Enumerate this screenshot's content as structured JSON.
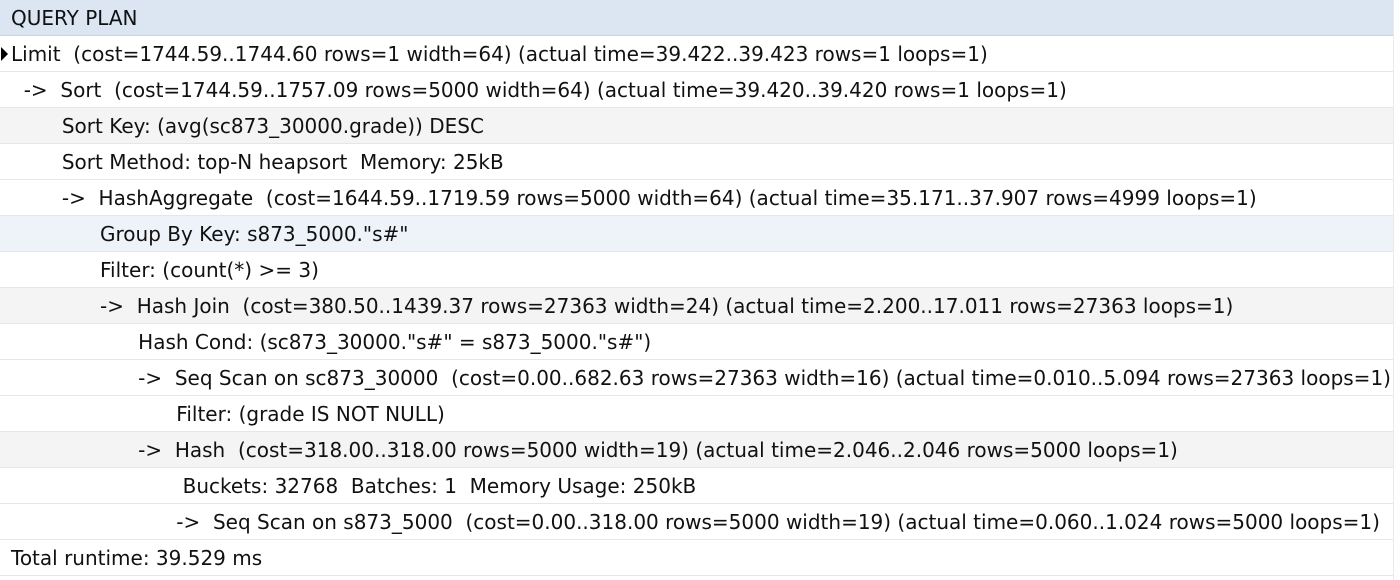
{
  "result_grid": {
    "column_header": "QUERY PLAN",
    "rows": [
      "Limit  (cost=1744.59..1744.60 rows=1 width=64) (actual time=39.422..39.423 rows=1 loops=1)",
      "  ->  Sort  (cost=1744.59..1757.09 rows=5000 width=64) (actual time=39.420..39.420 rows=1 loops=1)",
      "        Sort Key: (avg(sc873_30000.grade)) DESC",
      "        Sort Method: top-N heapsort  Memory: 25kB",
      "        ->  HashAggregate  (cost=1644.59..1719.59 rows=5000 width=64) (actual time=35.171..37.907 rows=4999 loops=1)",
      "              Group By Key: s873_5000.\"s#\"",
      "              Filter: (count(*) >= 3)",
      "              ->  Hash Join  (cost=380.50..1439.37 rows=27363 width=24) (actual time=2.200..17.011 rows=27363 loops=1)",
      "                    Hash Cond: (sc873_30000.\"s#\" = s873_5000.\"s#\")",
      "                    ->  Seq Scan on sc873_30000  (cost=0.00..682.63 rows=27363 width=16) (actual time=0.010..5.094 rows=27363 loops=1)",
      "                          Filter: (grade IS NOT NULL)",
      "                    ->  Hash  (cost=318.00..318.00 rows=5000 width=19) (actual time=2.046..2.046 rows=5000 loops=1)",
      "                           Buckets: 32768  Batches: 1  Memory Usage: 250kB",
      "                          ->  Seq Scan on s873_5000  (cost=0.00..318.00 rows=5000 width=19) (actual time=0.060..1.024 rows=5000 loops=1)",
      "Total runtime: 39.529 ms"
    ]
  }
}
